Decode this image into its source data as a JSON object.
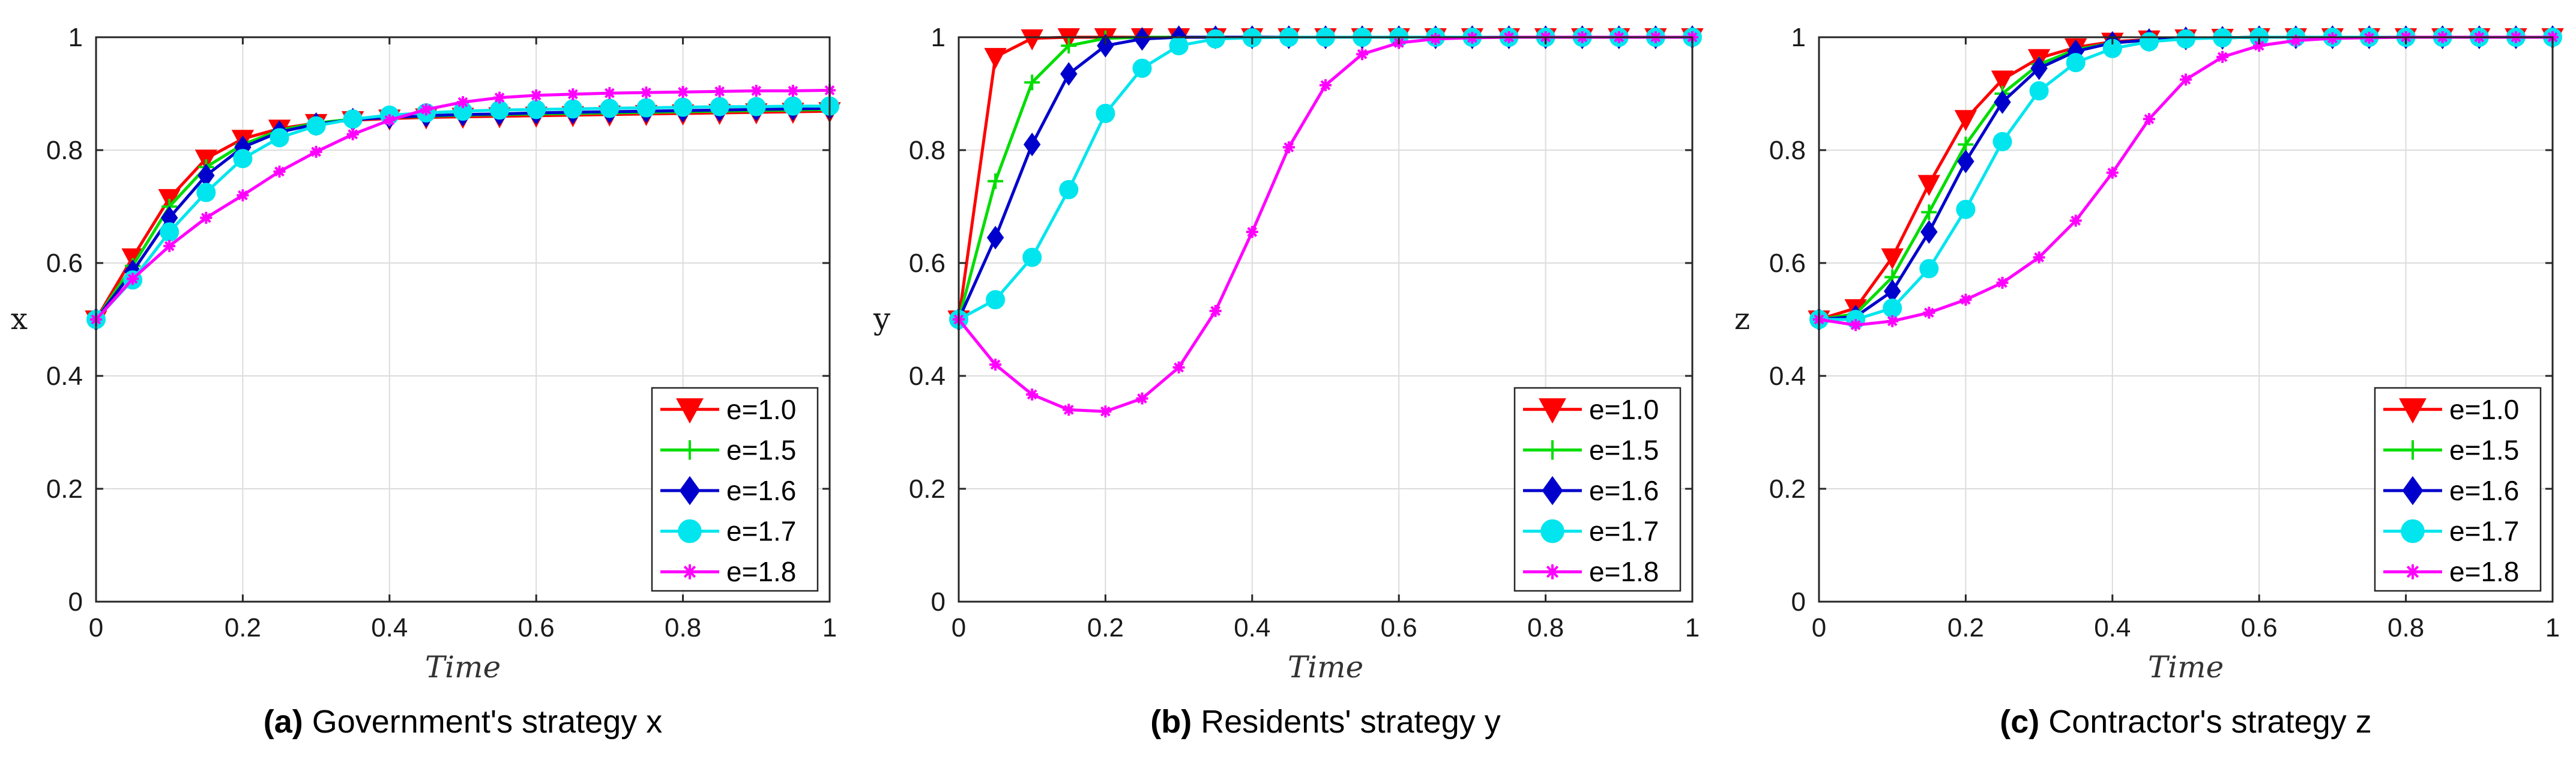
{
  "chart_data": [
    {
      "type": "line",
      "panel_label": "(a)",
      "caption": "Government's strategy x",
      "xlabel": "Time",
      "ylabel": "x",
      "xlim": [
        0,
        1
      ],
      "ylim": [
        0,
        1
      ],
      "xticks": [
        0,
        0.2,
        0.4,
        0.6,
        0.8,
        1
      ],
      "xtick_labels": [
        "0",
        "0.2",
        "0.4",
        "0.6",
        "0.8",
        "1"
      ],
      "yticks": [
        0,
        0.2,
        0.4,
        0.6,
        0.8,
        1
      ],
      "ytick_labels": [
        "0",
        "0.2",
        "0.4",
        "0.6",
        "0.8",
        "1"
      ],
      "grid": true,
      "legend_position": "bottom-right",
      "x": [
        0,
        0.05,
        0.1,
        0.15,
        0.2,
        0.25,
        0.3,
        0.35,
        0.4,
        0.45,
        0.5,
        0.55,
        0.6,
        0.65,
        0.7,
        0.75,
        0.8,
        0.85,
        0.9,
        0.95,
        1.0
      ],
      "series": [
        {
          "name": "e=1.0",
          "color": "#ff0000",
          "marker": "triangle-down",
          "values": [
            0.5,
            0.61,
            0.715,
            0.785,
            0.82,
            0.838,
            0.848,
            0.853,
            0.856,
            0.858,
            0.859,
            0.86,
            0.861,
            0.862,
            0.863,
            0.864,
            0.865,
            0.866,
            0.867,
            0.868,
            0.869
          ]
        },
        {
          "name": "e=1.5",
          "color": "#00dd00",
          "marker": "plus",
          "values": [
            0.5,
            0.595,
            0.7,
            0.77,
            0.81,
            0.835,
            0.848,
            0.855,
            0.858,
            0.86,
            0.862,
            0.863,
            0.864,
            0.865,
            0.866,
            0.867,
            0.868,
            0.869,
            0.87,
            0.871,
            0.872
          ]
        },
        {
          "name": "e=1.6",
          "color": "#0000cc",
          "marker": "diamond",
          "values": [
            0.5,
            0.585,
            0.68,
            0.755,
            0.805,
            0.832,
            0.846,
            0.854,
            0.858,
            0.861,
            0.863,
            0.864,
            0.866,
            0.867,
            0.868,
            0.869,
            0.87,
            0.871,
            0.872,
            0.873,
            0.874
          ]
        },
        {
          "name": "e=1.7",
          "color": "#00e5ee",
          "marker": "circle",
          "values": [
            0.5,
            0.57,
            0.655,
            0.725,
            0.785,
            0.822,
            0.843,
            0.855,
            0.862,
            0.866,
            0.869,
            0.871,
            0.872,
            0.873,
            0.874,
            0.875,
            0.876,
            0.877,
            0.877,
            0.878,
            0.878
          ]
        },
        {
          "name": "e=1.8",
          "color": "#ff00ff",
          "marker": "star",
          "values": [
            0.5,
            0.572,
            0.63,
            0.68,
            0.72,
            0.762,
            0.797,
            0.828,
            0.853,
            0.872,
            0.885,
            0.893,
            0.897,
            0.899,
            0.901,
            0.902,
            0.903,
            0.904,
            0.905,
            0.905,
            0.906
          ]
        }
      ]
    },
    {
      "type": "line",
      "panel_label": "(b)",
      "caption": "Residents' strategy y",
      "xlabel": "Time",
      "ylabel": "y",
      "xlim": [
        0,
        1
      ],
      "ylim": [
        0,
        1
      ],
      "xticks": [
        0,
        0.2,
        0.4,
        0.6,
        0.8,
        1
      ],
      "xtick_labels": [
        "0",
        "0.2",
        "0.4",
        "0.6",
        "0.8",
        "1"
      ],
      "yticks": [
        0,
        0.2,
        0.4,
        0.6,
        0.8,
        1
      ],
      "ytick_labels": [
        "0",
        "0.2",
        "0.4",
        "0.6",
        "0.8",
        "1"
      ],
      "grid": true,
      "legend_position": "bottom-right",
      "x": [
        0,
        0.05,
        0.1,
        0.15,
        0.2,
        0.25,
        0.3,
        0.35,
        0.4,
        0.45,
        0.5,
        0.55,
        0.6,
        0.65,
        0.7,
        0.75,
        0.8,
        0.85,
        0.9,
        0.95,
        1.0
      ],
      "series": [
        {
          "name": "e=1.0",
          "color": "#ff0000",
          "marker": "triangle-down",
          "values": [
            0.5,
            0.965,
            0.998,
            1.0,
            1.0,
            1.0,
            1.0,
            1.0,
            1.0,
            1.0,
            1.0,
            1.0,
            1.0,
            1.0,
            1.0,
            1.0,
            1.0,
            1.0,
            1.0,
            1.0,
            1.0
          ]
        },
        {
          "name": "e=1.5",
          "color": "#00dd00",
          "marker": "plus",
          "values": [
            0.5,
            0.745,
            0.92,
            0.985,
            0.998,
            1.0,
            1.0,
            1.0,
            1.0,
            1.0,
            1.0,
            1.0,
            1.0,
            1.0,
            1.0,
            1.0,
            1.0,
            1.0,
            1.0,
            1.0,
            1.0
          ]
        },
        {
          "name": "e=1.6",
          "color": "#0000cc",
          "marker": "diamond",
          "values": [
            0.5,
            0.645,
            0.81,
            0.935,
            0.985,
            0.997,
            1.0,
            1.0,
            1.0,
            1.0,
            1.0,
            1.0,
            1.0,
            1.0,
            1.0,
            1.0,
            1.0,
            1.0,
            1.0,
            1.0,
            1.0
          ]
        },
        {
          "name": "e=1.7",
          "color": "#00e5ee",
          "marker": "circle",
          "values": [
            0.5,
            0.535,
            0.61,
            0.73,
            0.865,
            0.945,
            0.985,
            0.997,
            0.999,
            1.0,
            1.0,
            1.0,
            1.0,
            1.0,
            1.0,
            1.0,
            1.0,
            1.0,
            1.0,
            1.0,
            1.0
          ]
        },
        {
          "name": "e=1.8",
          "color": "#ff00ff",
          "marker": "star",
          "values": [
            0.5,
            0.42,
            0.367,
            0.34,
            0.337,
            0.36,
            0.415,
            0.515,
            0.655,
            0.805,
            0.915,
            0.97,
            0.99,
            0.997,
            0.999,
            1.0,
            1.0,
            1.0,
            1.0,
            1.0,
            1.0
          ]
        }
      ]
    },
    {
      "type": "line",
      "panel_label": "(c)",
      "caption": "Contractor's strategy z",
      "xlabel": "Time",
      "ylabel": "z",
      "xlim": [
        0,
        1
      ],
      "ylim": [
        0,
        1
      ],
      "xticks": [
        0,
        0.2,
        0.4,
        0.6,
        0.8,
        1
      ],
      "xtick_labels": [
        "0",
        "0.2",
        "0.4",
        "0.6",
        "0.8",
        "1"
      ],
      "yticks": [
        0,
        0.2,
        0.4,
        0.6,
        0.8,
        1
      ],
      "ytick_labels": [
        "0",
        "0.2",
        "0.4",
        "0.6",
        "0.8",
        "1"
      ],
      "grid": true,
      "legend_position": "bottom-right",
      "x": [
        0,
        0.05,
        0.1,
        0.15,
        0.2,
        0.25,
        0.3,
        0.35,
        0.4,
        0.45,
        0.5,
        0.55,
        0.6,
        0.65,
        0.7,
        0.75,
        0.8,
        0.85,
        0.9,
        0.95,
        1.0
      ],
      "series": [
        {
          "name": "e=1.0",
          "color": "#ff0000",
          "marker": "triangle-down",
          "values": [
            0.5,
            0.52,
            0.61,
            0.74,
            0.855,
            0.925,
            0.963,
            0.982,
            0.992,
            0.996,
            0.998,
            0.999,
            1.0,
            1.0,
            1.0,
            1.0,
            1.0,
            1.0,
            1.0,
            1.0,
            1.0
          ]
        },
        {
          "name": "e=1.5",
          "color": "#00dd00",
          "marker": "plus",
          "values": [
            0.5,
            0.51,
            0.575,
            0.69,
            0.81,
            0.9,
            0.952,
            0.978,
            0.99,
            0.995,
            0.998,
            0.999,
            1.0,
            1.0,
            1.0,
            1.0,
            1.0,
            1.0,
            1.0,
            1.0,
            1.0
          ]
        },
        {
          "name": "e=1.6",
          "color": "#0000cc",
          "marker": "diamond",
          "values": [
            0.5,
            0.505,
            0.55,
            0.655,
            0.78,
            0.885,
            0.945,
            0.975,
            0.99,
            0.995,
            0.998,
            0.999,
            1.0,
            1.0,
            1.0,
            1.0,
            1.0,
            1.0,
            1.0,
            1.0,
            1.0
          ]
        },
        {
          "name": "e=1.7",
          "color": "#00e5ee",
          "marker": "circle",
          "values": [
            0.5,
            0.5,
            0.52,
            0.59,
            0.695,
            0.815,
            0.905,
            0.955,
            0.98,
            0.992,
            0.997,
            0.999,
            1.0,
            1.0,
            1.0,
            1.0,
            1.0,
            1.0,
            1.0,
            1.0,
            1.0
          ]
        },
        {
          "name": "e=1.8",
          "color": "#ff00ff",
          "marker": "star",
          "values": [
            0.5,
            0.49,
            0.497,
            0.512,
            0.535,
            0.565,
            0.61,
            0.675,
            0.76,
            0.855,
            0.925,
            0.965,
            0.985,
            0.994,
            0.998,
            0.999,
            1.0,
            1.0,
            1.0,
            1.0,
            1.0
          ]
        }
      ]
    }
  ]
}
